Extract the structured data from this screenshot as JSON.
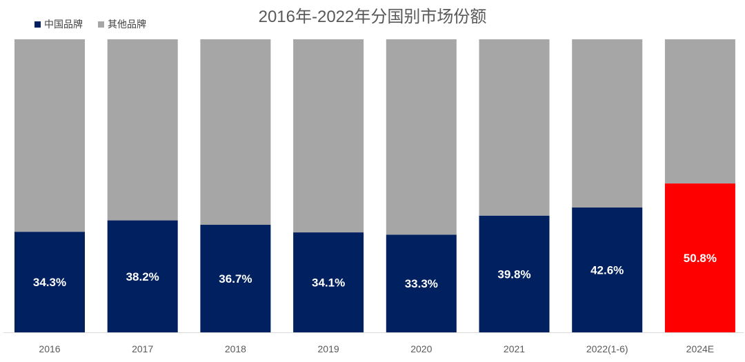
{
  "chart_data": {
    "type": "bar",
    "stacked": true,
    "percent_stacked": true,
    "title": "2016年-2022年分国别市场份额",
    "categories": [
      "2016",
      "2017",
      "2018",
      "2019",
      "2020",
      "2021",
      "2022(1-6)",
      "2024E"
    ],
    "series": [
      {
        "name": "中国品牌",
        "values": [
          34.3,
          38.2,
          36.7,
          34.1,
          33.3,
          39.8,
          42.6,
          50.8
        ],
        "labels": [
          "34.3%",
          "38.2%",
          "36.7%",
          "34.1%",
          "33.3%",
          "39.8%",
          "42.6%",
          "50.8%"
        ],
        "color": "#002060"
      },
      {
        "name": "其他品牌",
        "values": [
          65.7,
          61.8,
          63.3,
          65.9,
          66.7,
          60.2,
          57.4,
          49.2
        ],
        "color": "#A6A6A6"
      }
    ],
    "highlight": {
      "category": "2024E",
      "series": "中国品牌",
      "color": "#FF0000"
    },
    "ylim": [
      0,
      100
    ],
    "grid": false,
    "legend_position": "top-left",
    "xlabel": "",
    "ylabel": ""
  }
}
